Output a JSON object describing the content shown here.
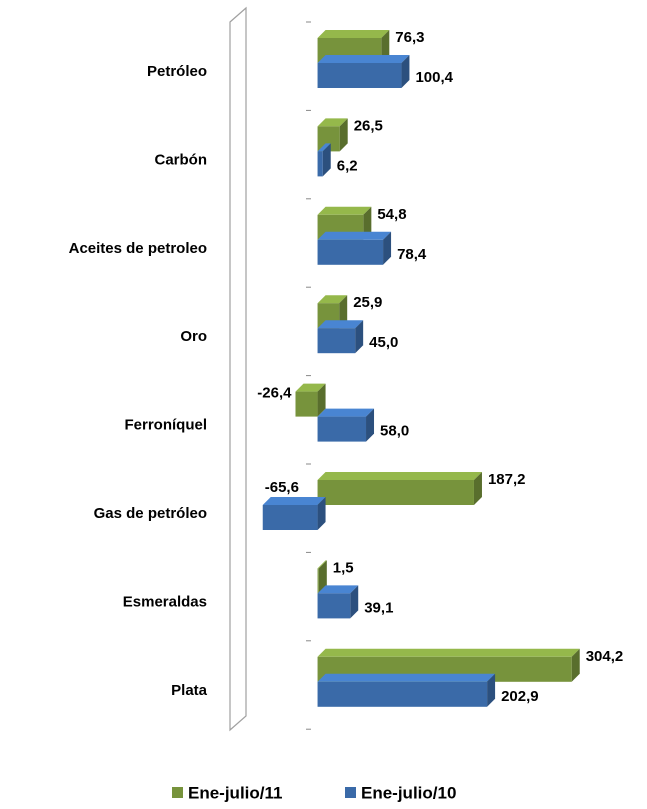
{
  "chart_data": {
    "type": "bar",
    "orientation": "horizontal",
    "categories": [
      "Petróleo",
      "Carbón",
      "Aceites de petroleo",
      "Oro",
      "Ferroníquel",
      "Gas de petróleo",
      "Esmeraldas",
      "Plata"
    ],
    "series": [
      {
        "name": "Ene-julio/11",
        "color": "#77933c",
        "values": [
          76.3,
          26.5,
          54.8,
          25.9,
          -26.4,
          187.2,
          1.5,
          304.2
        ],
        "value_labels": [
          "76,3",
          "26,5",
          "54,8",
          "25,9",
          "-26,4",
          "187,2",
          "1,5",
          "304,2"
        ]
      },
      {
        "name": "Ene-julio/10",
        "color": "#3a6aa8",
        "values": [
          100.4,
          6.2,
          78.4,
          45.0,
          58.0,
          -65.6,
          39.1,
          202.9
        ],
        "value_labels": [
          "100,4",
          "6,2",
          "78,4",
          "45,0",
          "58,0",
          "-65,6",
          "39,1",
          "202,9"
        ]
      }
    ],
    "xlim": [
      -100,
      350
    ],
    "legend": "bottom"
  }
}
